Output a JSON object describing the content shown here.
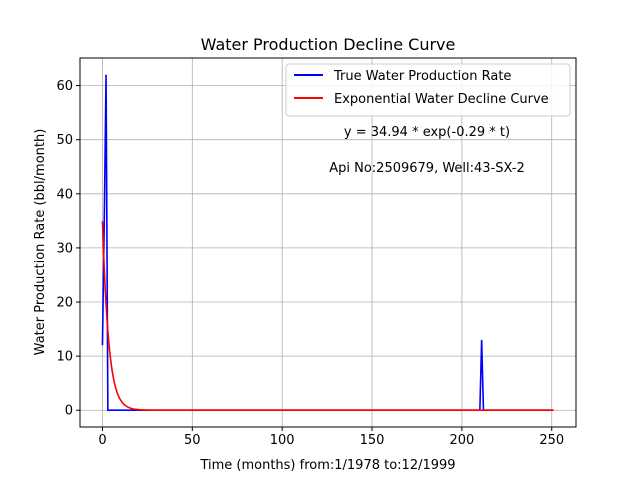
{
  "chart_data": {
    "type": "line",
    "title": "Water Production Decline Curve",
    "xlabel": "Time (months) from:1/1978 to:12/1999",
    "ylabel": "Water Production Rate (bbl/month)",
    "xlim": [
      -12.5,
      263.5
    ],
    "ylim": [
      -3.1,
      65.1
    ],
    "xticks": [
      0,
      50,
      100,
      150,
      200,
      250
    ],
    "yticks": [
      0,
      10,
      20,
      30,
      40,
      50,
      60
    ],
    "grid": true,
    "legend_position": "top-right",
    "series": [
      {
        "name": "True Water Production Rate",
        "color": "#0000ff",
        "x": [
          0,
          1,
          2,
          3,
          4,
          210,
          211,
          212,
          213,
          251
        ],
        "y": [
          12,
          35,
          62,
          0,
          0,
          0,
          13,
          0,
          0,
          0
        ]
      },
      {
        "name": "Exponential Water Decline Curve",
        "color": "#ff0000",
        "a": 34.94,
        "b": 0.29,
        "x_range": [
          0,
          251
        ]
      }
    ],
    "annotations": [
      "y = 34.94 * exp(-0.29 * t)",
      "Api No:2509679, Well:43-SX-2"
    ]
  }
}
